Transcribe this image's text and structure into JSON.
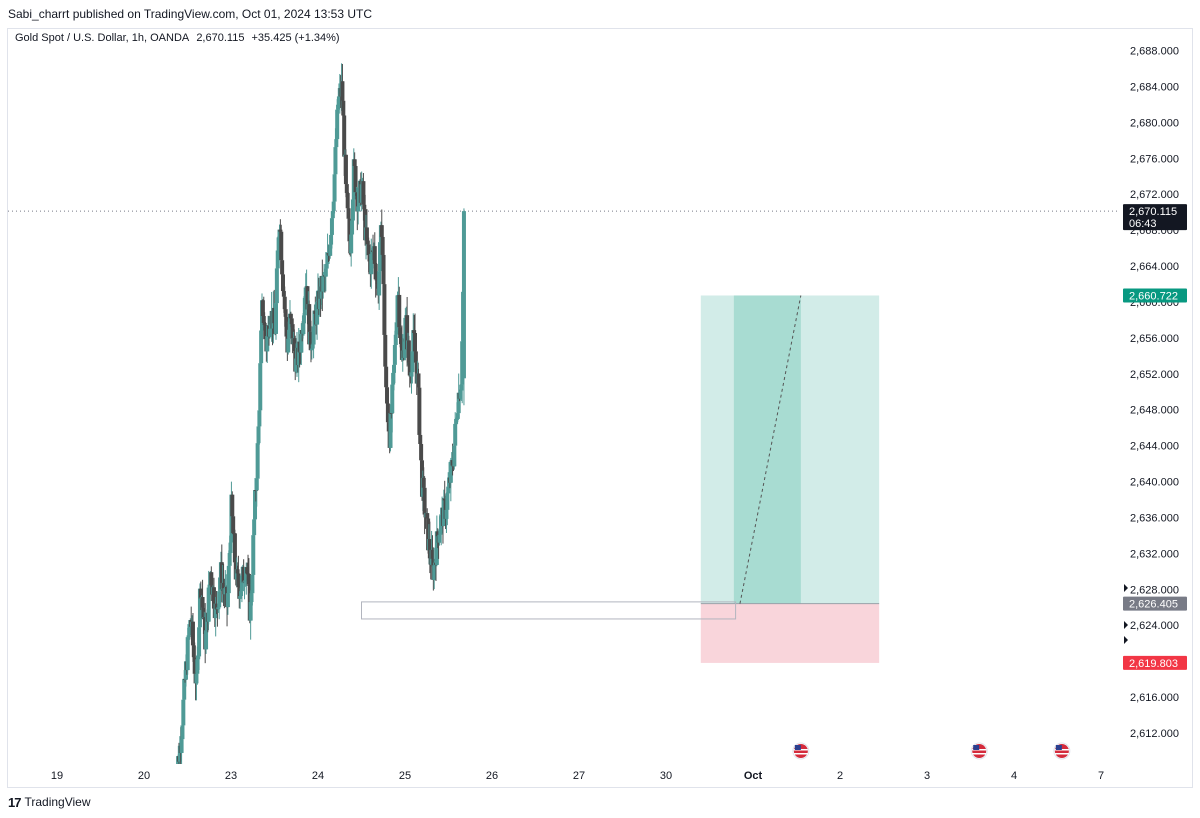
{
  "header": {
    "published": "Sabi_charrt published on TradingView.com, Oct 01, 2024 13:53 UTC"
  },
  "legend": {
    "symbol": "Gold Spot / U.S. Dollar, 1h, OANDA",
    "last": "2,670.115",
    "change": "+35.425 (+1.34%)"
  },
  "footer": {
    "brand": "TradingView",
    "logo": "17"
  },
  "colors": {
    "up": "#4f9a96",
    "down": "#4a4a4a",
    "profit_zone": "#d2ece8",
    "profit_zone_dark": "#a8dcd2",
    "loss_zone": "#f9d5db",
    "price_badge": "#131722",
    "target_badge": "#089981",
    "entry_badge": "#787b86",
    "stop_badge": "#f23645"
  },
  "chart_data": {
    "type": "candlestick",
    "symbol": "Gold Spot / U.S. Dollar",
    "timeframe": "1h",
    "exchange": "OANDA",
    "y_axis": {
      "ylim": [
        2608,
        2690
      ],
      "ticks": [
        "2,688.000",
        "2,684.000",
        "2,680.000",
        "2,676.000",
        "2,672.000",
        "2,668.000",
        "2,664.000",
        "2,660.000",
        "2,656.000",
        "2,652.000",
        "2,648.000",
        "2,644.000",
        "2,640.000",
        "2,636.000",
        "2,632.000",
        "2,628.000",
        "2,624.000",
        "2,620.000",
        "2,616.000",
        "2,612.000"
      ]
    },
    "x_axis": {
      "ticks": [
        {
          "label": "19",
          "day": 0
        },
        {
          "label": "20",
          "day": 1
        },
        {
          "label": "23",
          "day": 2
        },
        {
          "label": "24",
          "day": 3
        },
        {
          "label": "25",
          "day": 4
        },
        {
          "label": "26",
          "day": 5
        },
        {
          "label": "27",
          "day": 6
        },
        {
          "label": "30",
          "day": 7
        },
        {
          "label": "Oct",
          "day": 8
        },
        {
          "label": "2",
          "day": 9
        },
        {
          "label": "3",
          "day": 10
        },
        {
          "label": "4",
          "day": 11
        },
        {
          "label": "7",
          "day": 12
        }
      ]
    },
    "anchors": [
      [
        20.4,
        2606
      ],
      [
        21.0,
        2611
      ],
      [
        21.6,
        2620
      ],
      [
        22.0,
        2625
      ],
      [
        22.6,
        2617
      ],
      [
        23.0,
        2629
      ],
      [
        23.5,
        2622
      ],
      [
        24.0,
        2630
      ],
      [
        24.6,
        2625
      ],
      [
        25.0,
        2630
      ],
      [
        25.7,
        2626
      ],
      [
        26.1,
        2637
      ],
      [
        26.6,
        2629
      ],
      [
        27.0,
        2628
      ],
      [
        27.6,
        2631
      ],
      [
        28.0,
        2625
      ],
      [
        28.4,
        2636
      ],
      [
        28.8,
        2645
      ],
      [
        29.2,
        2660
      ],
      [
        29.6,
        2655
      ],
      [
        30.0,
        2659
      ],
      [
        30.5,
        2657
      ],
      [
        30.9,
        2670
      ],
      [
        31.3,
        2662
      ],
      [
        31.7,
        2655
      ],
      [
        32.0,
        2658
      ],
      [
        32.6,
        2653
      ],
      [
        33.0,
        2655
      ],
      [
        33.6,
        2663
      ],
      [
        34.0,
        2655
      ],
      [
        34.5,
        2658
      ],
      [
        35.0,
        2661
      ],
      [
        35.6,
        2663
      ],
      [
        36.0,
        2667
      ],
      [
        36.4,
        2673
      ],
      [
        36.8,
        2682
      ],
      [
        37.2,
        2684
      ],
      [
        37.6,
        2672
      ],
      [
        38.0,
        2666
      ],
      [
        38.4,
        2675
      ],
      [
        38.8,
        2671
      ],
      [
        39.2,
        2673
      ],
      [
        39.6,
        2667
      ],
      [
        40.0,
        2664
      ],
      [
        40.4,
        2666
      ],
      [
        40.8,
        2661
      ],
      [
        41.2,
        2669
      ],
      [
        41.6,
        2650
      ],
      [
        42.0,
        2645
      ],
      [
        42.4,
        2652
      ],
      [
        42.8,
        2662
      ],
      [
        43.2,
        2653
      ],
      [
        43.6,
        2658
      ],
      [
        44.0,
        2652
      ],
      [
        44.4,
        2656
      ],
      [
        44.8,
        2651
      ],
      [
        45.2,
        2640
      ],
      [
        45.6,
        2636
      ],
      [
        46.0,
        2632
      ],
      [
        46.4,
        2630
      ],
      [
        46.8,
        2634
      ],
      [
        47.2,
        2636
      ],
      [
        47.6,
        2637
      ],
      [
        48.0,
        2640
      ],
      [
        48.4,
        2643
      ],
      [
        48.8,
        2649
      ],
      [
        49.2,
        2652
      ],
      [
        49.5,
        2670
      ]
    ],
    "last_price": {
      "value": 2670.115,
      "label": "2,670.115",
      "countdown": "06:43"
    },
    "position": {
      "type": "long",
      "target": {
        "value": 2660.722,
        "label": "2,660.722"
      },
      "entry": {
        "value": 2626.405,
        "label": "2,626.405"
      },
      "stop": {
        "value": 2619.803,
        "label": "2,619.803"
      },
      "start_day": 7.4,
      "end_day": 9.45,
      "filled_until_day": 8.55
    },
    "level_box": {
      "start_day": 3.5,
      "end_day": 7.8,
      "top": 2626.6,
      "bottom": 2624.7
    },
    "event_days": [
      8.55,
      10.6,
      11.55
    ]
  }
}
